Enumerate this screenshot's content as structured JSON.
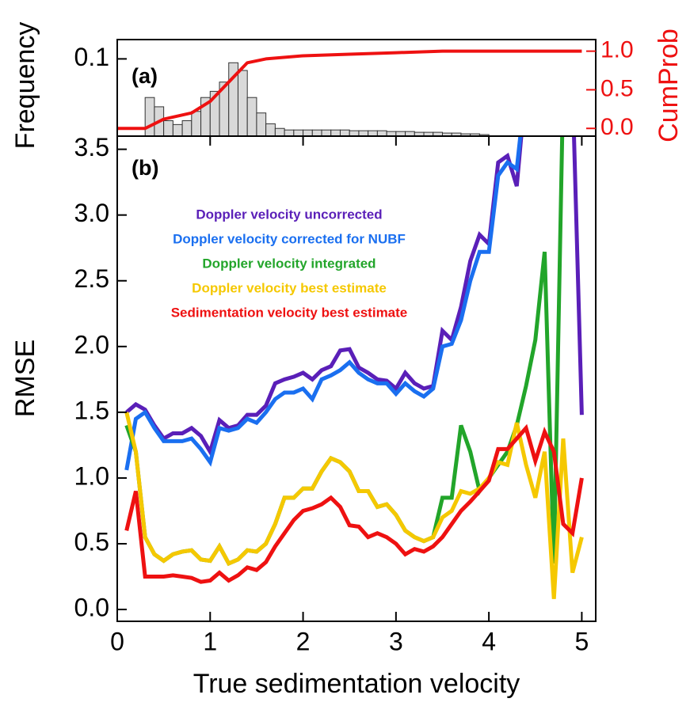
{
  "chart_data": [
    {
      "type": "histogram",
      "annotation": "(a)",
      "ylabel": "Frequency",
      "y2label": "CumProb",
      "bins": [
        0.3,
        0.4,
        0.5,
        0.6,
        0.7,
        0.8,
        0.9,
        1.0,
        1.1,
        1.2,
        1.3,
        1.4,
        1.5,
        1.6,
        1.7,
        1.8,
        1.9,
        2.0,
        2.1,
        2.2,
        2.3,
        2.4,
        2.5,
        2.6,
        2.7,
        2.8,
        2.9,
        3.0,
        3.1,
        3.2,
        3.3,
        3.4,
        3.5,
        3.6,
        3.7,
        3.8,
        3.9,
        4.0
      ],
      "values": [
        0.05,
        0.038,
        0.02,
        0.015,
        0.02,
        0.032,
        0.05,
        0.058,
        0.07,
        0.095,
        0.085,
        0.05,
        0.03,
        0.016,
        0.01,
        0.008,
        0.008,
        0.008,
        0.008,
        0.008,
        0.008,
        0.008,
        0.007,
        0.007,
        0.007,
        0.007,
        0.006,
        0.006,
        0.006,
        0.005,
        0.005,
        0.005,
        0.004,
        0.004,
        0.003,
        0.003,
        0.002
      ],
      "color": "#d9d9d9",
      "xlim": [
        0,
        5.15
      ],
      "ylim": [
        0,
        0.125
      ],
      "yticks": [
        0.1
      ],
      "y2lim": [
        -0.1,
        1.15
      ],
      "y2color": "#ee1111",
      "y2ticks": [
        {
          "value": 0,
          "label": "0.0"
        },
        {
          "value": 0.5,
          "label": "0.5"
        },
        {
          "value": 1,
          "label": "1.0"
        }
      ],
      "cumulative": {
        "axis": "y2",
        "color": "#ee1111",
        "x": [
          0,
          0.3,
          0.5,
          0.8,
          1.0,
          1.2,
          1.4,
          1.6,
          2.0,
          2.5,
          3.0,
          3.5,
          4.0,
          5.0
        ],
        "values": [
          0,
          0,
          0.12,
          0.2,
          0.35,
          0.6,
          0.85,
          0.9,
          0.94,
          0.96,
          0.98,
          1.0,
          1.0,
          1.0
        ]
      }
    },
    {
      "type": "line",
      "annotation": "(b)",
      "xlabel": "True sedimentation velocity",
      "ylabel": "RMSE",
      "xlim": [
        0,
        5.15
      ],
      "ylim": [
        -0.09,
        3.6
      ],
      "xticks": [
        0,
        1,
        2,
        3,
        4,
        5
      ],
      "yticks": [
        {
          "value": 0,
          "label": "0.0"
        },
        {
          "value": 0.5,
          "label": "0.5"
        },
        {
          "value": 1,
          "label": "1.0"
        },
        {
          "value": 1.5,
          "label": "1.5"
        },
        {
          "value": 2,
          "label": "2.0"
        },
        {
          "value": 2.5,
          "label": "2.5"
        },
        {
          "value": 3,
          "label": "3.0"
        },
        {
          "value": 3.5,
          "label": "3.5"
        }
      ],
      "legend": "upper left",
      "x": [
        0.1,
        0.2,
        0.3,
        0.4,
        0.5,
        0.6,
        0.7,
        0.8,
        0.9,
        1.0,
        1.1,
        1.2,
        1.3,
        1.4,
        1.5,
        1.6,
        1.7,
        1.8,
        1.9,
        2.0,
        2.1,
        2.2,
        2.3,
        2.4,
        2.5,
        2.6,
        2.7,
        2.8,
        2.9,
        3.0,
        3.1,
        3.2,
        3.3,
        3.4,
        3.5,
        3.6,
        3.7,
        3.8,
        3.9,
        4.0,
        4.1,
        4.2,
        4.3,
        4.4,
        4.5,
        4.6,
        4.7,
        4.8,
        4.9,
        5.0
      ],
      "series": [
        {
          "name": "Doppler velocity uncorrected",
          "color": "#5a1fb8",
          "values": [
            1.5,
            1.56,
            1.52,
            1.4,
            1.3,
            1.34,
            1.34,
            1.38,
            1.32,
            1.2,
            1.44,
            1.38,
            1.4,
            1.48,
            1.48,
            1.55,
            1.72,
            1.75,
            1.77,
            1.8,
            1.75,
            1.82,
            1.85,
            1.97,
            1.98,
            1.84,
            1.8,
            1.75,
            1.74,
            1.68,
            1.8,
            1.72,
            1.68,
            1.7,
            2.12,
            2.05,
            2.3,
            2.65,
            2.85,
            2.78,
            3.4,
            3.45,
            3.22,
            4.0,
            null,
            null,
            null,
            null,
            4.0,
            1.48
          ]
        },
        {
          "name": "Doppler velocity corrected for NUBF",
          "color": "#1a6ff0",
          "values": [
            1.06,
            1.45,
            1.5,
            1.38,
            1.28,
            1.28,
            1.28,
            1.3,
            1.22,
            1.12,
            1.38,
            1.36,
            1.38,
            1.45,
            1.42,
            1.5,
            1.6,
            1.65,
            1.65,
            1.68,
            1.6,
            1.75,
            1.78,
            1.82,
            1.88,
            1.8,
            1.75,
            1.72,
            1.72,
            1.64,
            1.72,
            1.66,
            1.62,
            1.68,
            2.0,
            2.02,
            2.2,
            2.5,
            2.72,
            2.72,
            3.3,
            3.4,
            3.35,
            4.0,
            null,
            null,
            null,
            null,
            null,
            null
          ]
        },
        {
          "name": "Doppler velocity integrated",
          "color": "#22a52a",
          "values": [
            1.4,
            1.2,
            0.55,
            0.42,
            0.37,
            0.42,
            0.44,
            0.45,
            0.38,
            0.37,
            0.48,
            0.35,
            0.38,
            0.45,
            0.44,
            0.5,
            0.65,
            0.85,
            0.85,
            0.92,
            0.92,
            1.05,
            1.15,
            1.12,
            1.05,
            0.9,
            0.9,
            0.78,
            0.8,
            0.72,
            0.6,
            0.55,
            0.52,
            0.55,
            0.85,
            0.85,
            1.4,
            1.2,
            0.9,
            1.0,
            1.1,
            1.2,
            1.4,
            1.7,
            2.05,
            2.72,
            0.35,
            4.0,
            null,
            null
          ]
        },
        {
          "name": "Doppler velocity best estimate",
          "color": "#f5c800",
          "values": [
            1.5,
            1.2,
            0.55,
            0.42,
            0.37,
            0.42,
            0.44,
            0.45,
            0.38,
            0.37,
            0.48,
            0.35,
            0.38,
            0.45,
            0.44,
            0.5,
            0.65,
            0.85,
            0.85,
            0.92,
            0.92,
            1.05,
            1.15,
            1.12,
            1.05,
            0.9,
            0.9,
            0.78,
            0.8,
            0.72,
            0.6,
            0.55,
            0.52,
            0.55,
            0.7,
            0.75,
            0.9,
            0.88,
            0.92,
            1.0,
            1.12,
            1.1,
            1.42,
            1.1,
            0.85,
            1.2,
            0.08,
            1.3,
            0.28,
            0.55
          ]
        },
        {
          "name": "Sedimentation velocity best estimate",
          "color": "#ee1111",
          "values": [
            0.6,
            0.9,
            0.25,
            0.25,
            0.25,
            0.26,
            0.25,
            0.24,
            0.21,
            0.22,
            0.28,
            0.22,
            0.26,
            0.32,
            0.3,
            0.36,
            0.48,
            0.58,
            0.68,
            0.75,
            0.77,
            0.8,
            0.85,
            0.78,
            0.64,
            0.63,
            0.55,
            0.58,
            0.55,
            0.5,
            0.42,
            0.46,
            0.44,
            0.48,
            0.55,
            0.65,
            0.75,
            0.82,
            0.9,
            0.98,
            1.22,
            1.22,
            1.3,
            1.38,
            1.13,
            1.35,
            1.2,
            0.65,
            0.58,
            1.0
          ]
        }
      ]
    }
  ]
}
